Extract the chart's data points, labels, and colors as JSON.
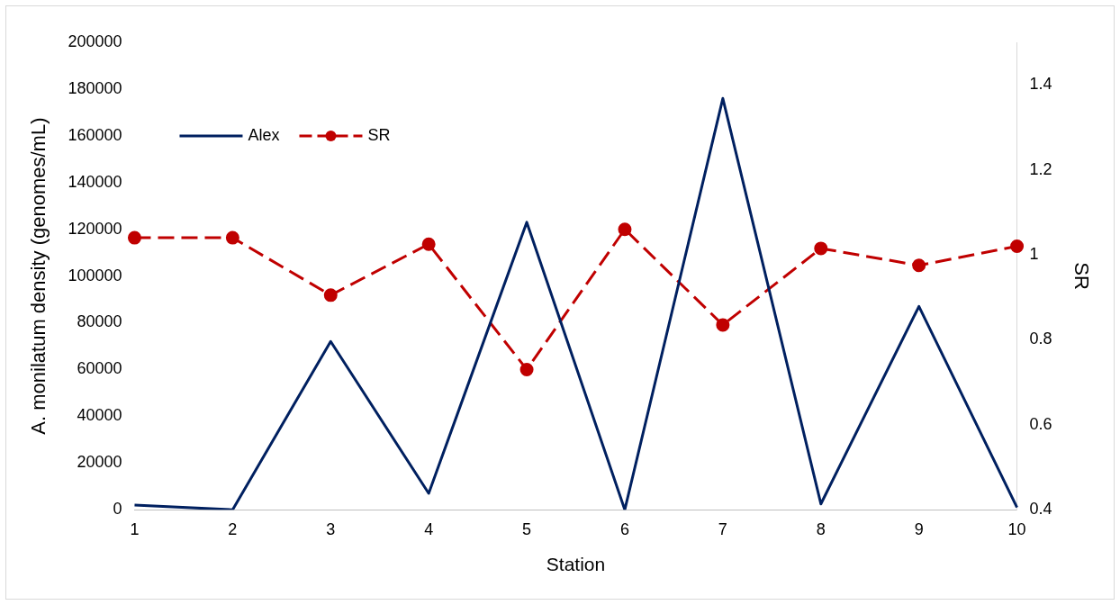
{
  "chart_data": {
    "type": "line",
    "xlabel": "Station",
    "ylabel": "A. monilatum density (genomes/mL)",
    "y2label": "SR",
    "categories": [
      "1",
      "2",
      "3",
      "4",
      "5",
      "6",
      "7",
      "8",
      "9",
      "10"
    ],
    "series": [
      {
        "name": "Alex",
        "color": "#002060",
        "values": [
          2000,
          0,
          72000,
          7000,
          123000,
          0,
          176000,
          2500,
          87000,
          1000
        ],
        "marker": "none",
        "line_style": "solid"
      },
      {
        "name": "SR",
        "color": "#c00000",
        "axis": "y2",
        "values": [
          1.04,
          1.04,
          0.905,
          1.025,
          0.73,
          1.06,
          0.835,
          1.015,
          0.975,
          1.02
        ],
        "marker": "circle",
        "line_style": "dashed"
      }
    ],
    "ylim": [
      0,
      200000
    ],
    "yticks": [
      0,
      20000,
      40000,
      60000,
      80000,
      100000,
      120000,
      140000,
      160000,
      180000,
      200000
    ],
    "y2lim": [
      0.4,
      1.5
    ],
    "y2ticks": [
      0.4,
      0.6,
      0.8,
      1,
      1.2,
      1.4
    ],
    "grid": false,
    "legend": "top left"
  }
}
